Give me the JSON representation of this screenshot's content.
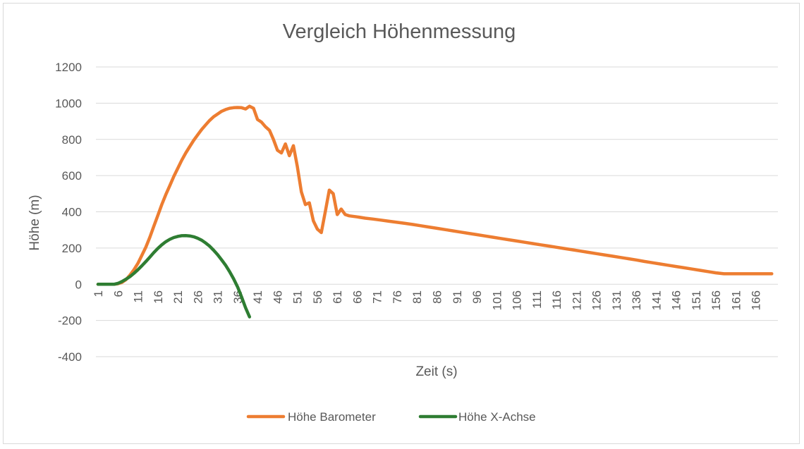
{
  "chart_data": {
    "type": "line",
    "title": "Vergleich Höhenmessung",
    "xlabel": "Zeit (s)",
    "ylabel": "Höhe (m)",
    "ylim": [
      -400,
      1200
    ],
    "yticks": [
      -400,
      -200,
      0,
      200,
      400,
      600,
      800,
      1000,
      1200
    ],
    "yticklabels": [
      "-400",
      "-200",
      "0",
      "200",
      "400",
      "600",
      "800",
      "1000",
      "1200"
    ],
    "xlim": [
      1,
      171
    ],
    "xticklabels": [
      "1",
      "6",
      "11",
      "16",
      "21",
      "26",
      "31",
      "36",
      "41",
      "46",
      "51",
      "56",
      "61",
      "66",
      "71",
      "76",
      "81",
      "86",
      "91",
      "96",
      "101",
      "106",
      "111",
      "116",
      "121",
      "126",
      "131",
      "136",
      "141",
      "146",
      "151",
      "156",
      "161",
      "166"
    ],
    "grid": "horizontal",
    "legend_position": "bottom",
    "series": [
      {
        "name": "Höhe Barometer",
        "color": "#ed7d31",
        "points": [
          [
            1,
            0
          ],
          [
            3,
            0
          ],
          [
            5,
            0
          ],
          [
            6,
            3
          ],
          [
            7,
            10
          ],
          [
            8,
            25
          ],
          [
            9,
            50
          ],
          [
            10,
            80
          ],
          [
            11,
            115
          ],
          [
            12,
            160
          ],
          [
            13,
            205
          ],
          [
            14,
            260
          ],
          [
            15,
            320
          ],
          [
            16,
            380
          ],
          [
            17,
            440
          ],
          [
            18,
            495
          ],
          [
            19,
            545
          ],
          [
            20,
            595
          ],
          [
            21,
            640
          ],
          [
            22,
            685
          ],
          [
            23,
            725
          ],
          [
            24,
            760
          ],
          [
            25,
            795
          ],
          [
            26,
            825
          ],
          [
            27,
            855
          ],
          [
            28,
            880
          ],
          [
            29,
            905
          ],
          [
            30,
            925
          ],
          [
            31,
            940
          ],
          [
            32,
            955
          ],
          [
            33,
            965
          ],
          [
            34,
            972
          ],
          [
            35,
            975
          ],
          [
            36,
            976
          ],
          [
            37,
            975
          ],
          [
            38,
            968
          ],
          [
            39,
            983
          ],
          [
            40,
            972
          ],
          [
            41,
            910
          ],
          [
            42,
            895
          ],
          [
            43,
            870
          ],
          [
            44,
            850
          ],
          [
            45,
            800
          ],
          [
            46,
            740
          ],
          [
            47,
            725
          ],
          [
            48,
            775
          ],
          [
            49,
            710
          ],
          [
            50,
            765
          ],
          [
            51,
            650
          ],
          [
            52,
            510
          ],
          [
            53,
            440
          ],
          [
            54,
            450
          ],
          [
            55,
            350
          ],
          [
            56,
            305
          ],
          [
            57,
            285
          ],
          [
            58,
            400
          ],
          [
            59,
            520
          ],
          [
            60,
            500
          ],
          [
            61,
            385
          ],
          [
            62,
            415
          ],
          [
            63,
            385
          ],
          [
            64,
            378
          ],
          [
            66,
            372
          ],
          [
            68,
            365
          ],
          [
            70,
            360
          ],
          [
            72,
            354
          ],
          [
            74,
            348
          ],
          [
            76,
            342
          ],
          [
            78,
            336
          ],
          [
            80,
            330
          ],
          [
            82,
            323
          ],
          [
            84,
            316
          ],
          [
            86,
            309
          ],
          [
            88,
            302
          ],
          [
            90,
            295
          ],
          [
            92,
            288
          ],
          [
            94,
            281
          ],
          [
            96,
            274
          ],
          [
            98,
            267
          ],
          [
            100,
            260
          ],
          [
            102,
            253
          ],
          [
            104,
            246
          ],
          [
            106,
            239
          ],
          [
            108,
            232
          ],
          [
            110,
            225
          ],
          [
            112,
            218
          ],
          [
            114,
            211
          ],
          [
            116,
            204
          ],
          [
            118,
            197
          ],
          [
            120,
            190
          ],
          [
            122,
            183
          ],
          [
            124,
            176
          ],
          [
            126,
            169
          ],
          [
            128,
            162
          ],
          [
            130,
            155
          ],
          [
            132,
            148
          ],
          [
            134,
            141
          ],
          [
            136,
            134
          ],
          [
            138,
            126
          ],
          [
            140,
            119
          ],
          [
            142,
            112
          ],
          [
            144,
            105
          ],
          [
            146,
            98
          ],
          [
            148,
            91
          ],
          [
            150,
            84
          ],
          [
            152,
            77
          ],
          [
            154,
            70
          ],
          [
            156,
            63
          ],
          [
            158,
            58
          ],
          [
            159,
            58
          ],
          [
            160,
            58
          ],
          [
            162,
            58
          ],
          [
            164,
            58
          ],
          [
            166,
            58
          ],
          [
            168,
            58
          ],
          [
            170,
            58
          ]
        ]
      },
      {
        "name": "Höhe X-Achse",
        "color": "#2e7d32",
        "points": [
          [
            1,
            0
          ],
          [
            3,
            0
          ],
          [
            5,
            0
          ],
          [
            6,
            5
          ],
          [
            7,
            15
          ],
          [
            8,
            28
          ],
          [
            9,
            42
          ],
          [
            10,
            60
          ],
          [
            11,
            80
          ],
          [
            12,
            102
          ],
          [
            13,
            125
          ],
          [
            14,
            150
          ],
          [
            15,
            175
          ],
          [
            16,
            198
          ],
          [
            17,
            218
          ],
          [
            18,
            235
          ],
          [
            19,
            248
          ],
          [
            20,
            258
          ],
          [
            21,
            264
          ],
          [
            22,
            268
          ],
          [
            23,
            269
          ],
          [
            24,
            267
          ],
          [
            25,
            262
          ],
          [
            26,
            254
          ],
          [
            27,
            243
          ],
          [
            28,
            228
          ],
          [
            29,
            210
          ],
          [
            30,
            188
          ],
          [
            31,
            163
          ],
          [
            32,
            135
          ],
          [
            33,
            105
          ],
          [
            34,
            70
          ],
          [
            35,
            30
          ],
          [
            36,
            -15
          ],
          [
            37,
            -70
          ],
          [
            38,
            -130
          ],
          [
            39,
            -180
          ]
        ]
      }
    ]
  }
}
